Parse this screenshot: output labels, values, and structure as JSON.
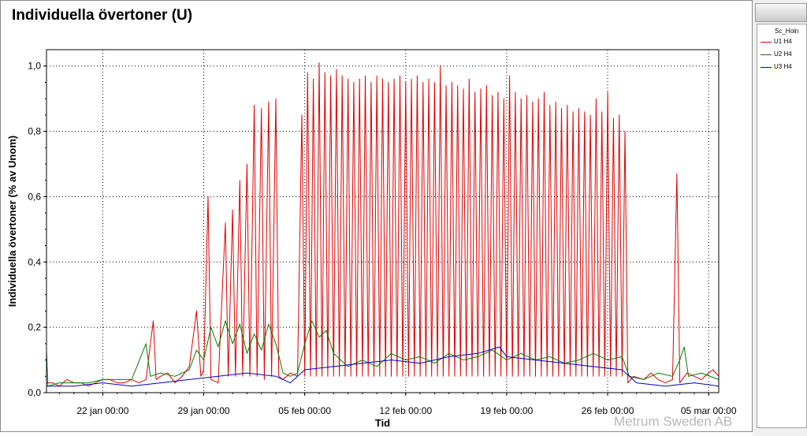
{
  "chart_data": {
    "type": "line",
    "title": "Individuella övertoner (U)",
    "xlabel": "Tid",
    "ylabel": "Individuella övertoner (% av Unom)",
    "ylim": [
      0,
      1.05
    ],
    "yticks": [
      "0,0",
      "0,2",
      "0,4",
      "0,6",
      "0,8",
      "1,0"
    ],
    "ytick_values": [
      0,
      0.2,
      0.4,
      0.6,
      0.8,
      1.0
    ],
    "xlim_days": [
      -3.9,
      42.7
    ],
    "xticks": [
      "22 jan 00:00",
      "29 jan 00:00",
      "05 feb 00:00",
      "12 feb 00:00",
      "19 feb 00:00",
      "26 feb 00:00",
      "05 mar 00:00"
    ],
    "xtick_days": [
      0,
      7,
      14,
      21,
      28,
      35,
      42
    ],
    "grid": true,
    "legend_title": "Sc_Holn",
    "legend_position": "right",
    "series": [
      {
        "name": "U1 H4",
        "color": "#e00000",
        "points": [
          [
            -3.9,
            0.03
          ],
          [
            -3.5,
            0.03
          ],
          [
            -3.0,
            0.02
          ],
          [
            -2.5,
            0.04
          ],
          [
            -2.0,
            0.03
          ],
          [
            -1.5,
            0.03
          ],
          [
            -1.0,
            0.02
          ],
          [
            -0.5,
            0.03
          ],
          [
            0.0,
            0.04
          ],
          [
            0.5,
            0.04
          ],
          [
            1.0,
            0.03
          ],
          [
            1.5,
            0.03
          ],
          [
            2.0,
            0.04
          ],
          [
            2.5,
            0.03
          ],
          [
            3.0,
            0.04
          ],
          [
            3.5,
            0.22
          ],
          [
            3.7,
            0.04
          ],
          [
            4.0,
            0.05
          ],
          [
            4.5,
            0.06
          ],
          [
            5.0,
            0.03
          ],
          [
            5.5,
            0.05
          ],
          [
            6.0,
            0.08
          ],
          [
            6.5,
            0.25
          ],
          [
            6.8,
            0.05
          ],
          [
            7.0,
            0.07
          ],
          [
            7.3,
            0.6
          ],
          [
            7.5,
            0.04
          ],
          [
            8.0,
            0.03
          ],
          [
            8.5,
            0.52
          ],
          [
            8.7,
            0.05
          ],
          [
            9.0,
            0.56
          ],
          [
            9.2,
            0.05
          ],
          [
            9.5,
            0.65
          ],
          [
            9.7,
            0.05
          ],
          [
            10.0,
            0.7
          ],
          [
            10.2,
            0.05
          ],
          [
            10.5,
            0.88
          ],
          [
            10.7,
            0.05
          ],
          [
            11.0,
            0.87
          ],
          [
            11.2,
            0.04
          ],
          [
            11.5,
            0.89
          ],
          [
            11.7,
            0.05
          ],
          [
            12.0,
            0.9
          ],
          [
            12.2,
            0.05
          ],
          [
            12.5,
            0.04
          ],
          [
            13.0,
            0.06
          ],
          [
            13.5,
            0.05
          ],
          [
            13.8,
            0.85
          ],
          [
            14.0,
            0.05
          ],
          [
            14.2,
            0.98
          ],
          [
            14.4,
            0.05
          ],
          [
            14.6,
            0.96
          ],
          [
            14.8,
            0.05
          ],
          [
            15.0,
            1.01
          ],
          [
            15.2,
            0.05
          ],
          [
            15.4,
            0.98
          ],
          [
            15.6,
            0.05
          ],
          [
            15.8,
            0.97
          ],
          [
            16.0,
            0.05
          ],
          [
            16.2,
            0.99
          ],
          [
            16.4,
            0.05
          ],
          [
            16.6,
            0.97
          ],
          [
            16.8,
            0.05
          ],
          [
            17.0,
            0.96
          ],
          [
            17.2,
            0.05
          ],
          [
            17.4,
            0.95
          ],
          [
            17.6,
            0.05
          ],
          [
            17.8,
            0.96
          ],
          [
            18.0,
            0.05
          ],
          [
            18.2,
            0.97
          ],
          [
            18.4,
            0.05
          ],
          [
            18.6,
            0.95
          ],
          [
            18.8,
            0.05
          ],
          [
            19.0,
            0.97
          ],
          [
            19.2,
            0.05
          ],
          [
            19.4,
            0.96
          ],
          [
            19.6,
            0.05
          ],
          [
            19.8,
            0.95
          ],
          [
            20.0,
            0.05
          ],
          [
            20.2,
            0.96
          ],
          [
            20.4,
            0.05
          ],
          [
            20.6,
            0.97
          ],
          [
            20.8,
            0.05
          ],
          [
            21.0,
            0.95
          ],
          [
            21.2,
            0.05
          ],
          [
            21.4,
            0.96
          ],
          [
            21.6,
            0.05
          ],
          [
            21.8,
            0.97
          ],
          [
            22.0,
            0.05
          ],
          [
            22.2,
            0.95
          ],
          [
            22.4,
            0.05
          ],
          [
            22.6,
            0.96
          ],
          [
            22.8,
            0.05
          ],
          [
            23.0,
            0.95
          ],
          [
            23.2,
            0.05
          ],
          [
            23.4,
            1.0
          ],
          [
            23.6,
            0.05
          ],
          [
            23.8,
            0.94
          ],
          [
            24.0,
            0.05
          ],
          [
            24.2,
            0.95
          ],
          [
            24.4,
            0.05
          ],
          [
            24.6,
            0.94
          ],
          [
            24.8,
            0.05
          ],
          [
            25.0,
            0.93
          ],
          [
            25.2,
            0.05
          ],
          [
            25.4,
            0.96
          ],
          [
            25.6,
            0.05
          ],
          [
            25.8,
            0.92
          ],
          [
            26.0,
            0.05
          ],
          [
            26.2,
            0.93
          ],
          [
            26.4,
            0.05
          ],
          [
            26.6,
            0.94
          ],
          [
            26.8,
            0.05
          ],
          [
            27.0,
            0.91
          ],
          [
            27.2,
            0.05
          ],
          [
            27.4,
            0.92
          ],
          [
            27.6,
            0.05
          ],
          [
            27.8,
            0.9
          ],
          [
            28.0,
            0.05
          ],
          [
            28.2,
            0.97
          ],
          [
            28.4,
            0.05
          ],
          [
            28.6,
            0.92
          ],
          [
            28.8,
            0.05
          ],
          [
            29.0,
            0.9
          ],
          [
            29.2,
            0.05
          ],
          [
            29.4,
            0.91
          ],
          [
            29.6,
            0.05
          ],
          [
            29.8,
            0.89
          ],
          [
            30.0,
            0.05
          ],
          [
            30.2,
            0.9
          ],
          [
            30.4,
            0.05
          ],
          [
            30.6,
            0.92
          ],
          [
            30.8,
            0.05
          ],
          [
            31.0,
            0.88
          ],
          [
            31.2,
            0.05
          ],
          [
            31.4,
            0.89
          ],
          [
            31.6,
            0.05
          ],
          [
            31.8,
            0.87
          ],
          [
            32.0,
            0.05
          ],
          [
            32.2,
            0.88
          ],
          [
            32.4,
            0.05
          ],
          [
            32.6,
            0.86
          ],
          [
            32.8,
            0.05
          ],
          [
            33.0,
            0.87
          ],
          [
            33.2,
            0.05
          ],
          [
            33.4,
            0.86
          ],
          [
            33.6,
            0.05
          ],
          [
            33.8,
            0.85
          ],
          [
            34.0,
            0.05
          ],
          [
            34.2,
            0.9
          ],
          [
            34.4,
            0.05
          ],
          [
            34.6,
            0.86
          ],
          [
            34.8,
            0.05
          ],
          [
            35.0,
            0.92
          ],
          [
            35.2,
            0.05
          ],
          [
            35.4,
            0.84
          ],
          [
            35.6,
            0.05
          ],
          [
            35.8,
            0.85
          ],
          [
            36.0,
            0.05
          ],
          [
            36.2,
            0.8
          ],
          [
            36.4,
            0.03
          ],
          [
            36.8,
            0.05
          ],
          [
            37.5,
            0.04
          ],
          [
            38.0,
            0.06
          ],
          [
            38.5,
            0.04
          ],
          [
            39.0,
            0.03
          ],
          [
            39.5,
            0.04
          ],
          [
            39.8,
            0.67
          ],
          [
            40.0,
            0.03
          ],
          [
            40.5,
            0.06
          ],
          [
            41.0,
            0.05
          ],
          [
            41.5,
            0.04
          ],
          [
            42.0,
            0.06
          ],
          [
            42.3,
            0.07
          ],
          [
            42.7,
            0.05
          ]
        ]
      },
      {
        "name": "U2 H4",
        "color": "#008000",
        "points": [
          [
            -3.9,
            0.13
          ],
          [
            -3.8,
            0.02
          ],
          [
            -3.0,
            0.03
          ],
          [
            -2.0,
            0.03
          ],
          [
            -1.0,
            0.03
          ],
          [
            0.0,
            0.04
          ],
          [
            1.0,
            0.04
          ],
          [
            2.0,
            0.04
          ],
          [
            3.0,
            0.15
          ],
          [
            3.3,
            0.05
          ],
          [
            4.0,
            0.06
          ],
          [
            5.0,
            0.05
          ],
          [
            6.0,
            0.07
          ],
          [
            6.5,
            0.13
          ],
          [
            7.0,
            0.1
          ],
          [
            7.5,
            0.2
          ],
          [
            8.0,
            0.14
          ],
          [
            8.5,
            0.22
          ],
          [
            9.0,
            0.15
          ],
          [
            9.5,
            0.21
          ],
          [
            10.0,
            0.12
          ],
          [
            10.5,
            0.18
          ],
          [
            11.0,
            0.13
          ],
          [
            11.5,
            0.21
          ],
          [
            12.0,
            0.15
          ],
          [
            12.5,
            0.06
          ],
          [
            13.0,
            0.05
          ],
          [
            13.5,
            0.06
          ],
          [
            14.0,
            0.15
          ],
          [
            14.5,
            0.22
          ],
          [
            15.0,
            0.17
          ],
          [
            15.5,
            0.19
          ],
          [
            16.0,
            0.12
          ],
          [
            16.5,
            0.1
          ],
          [
            17.0,
            0.08
          ],
          [
            18.0,
            0.1
          ],
          [
            19.0,
            0.08
          ],
          [
            20.0,
            0.12
          ],
          [
            21.0,
            0.1
          ],
          [
            22.0,
            0.11
          ],
          [
            23.0,
            0.09
          ],
          [
            24.0,
            0.12
          ],
          [
            25.0,
            0.1
          ],
          [
            26.0,
            0.11
          ],
          [
            27.0,
            0.13
          ],
          [
            28.0,
            0.1
          ],
          [
            29.0,
            0.12
          ],
          [
            30.0,
            0.1
          ],
          [
            31.0,
            0.11
          ],
          [
            32.0,
            0.09
          ],
          [
            33.0,
            0.1
          ],
          [
            34.0,
            0.12
          ],
          [
            35.0,
            0.1
          ],
          [
            36.0,
            0.11
          ],
          [
            36.5,
            0.05
          ],
          [
            37.5,
            0.04
          ],
          [
            38.5,
            0.06
          ],
          [
            39.5,
            0.05
          ],
          [
            40.0,
            0.1
          ],
          [
            40.3,
            0.14
          ],
          [
            40.6,
            0.05
          ],
          [
            41.5,
            0.06
          ],
          [
            42.7,
            0.04
          ]
        ]
      },
      {
        "name": "U3 H4",
        "color": "#0000cc",
        "points": [
          [
            -3.9,
            0.02
          ],
          [
            -2.0,
            0.02
          ],
          [
            0.0,
            0.03
          ],
          [
            2.0,
            0.02
          ],
          [
            4.0,
            0.03
          ],
          [
            6.0,
            0.04
          ],
          [
            8.0,
            0.05
          ],
          [
            10.0,
            0.06
          ],
          [
            12.0,
            0.05
          ],
          [
            13.0,
            0.03
          ],
          [
            14.0,
            0.07
          ],
          [
            16.0,
            0.08
          ],
          [
            18.0,
            0.09
          ],
          [
            20.0,
            0.1
          ],
          [
            22.0,
            0.09
          ],
          [
            24.0,
            0.11
          ],
          [
            26.0,
            0.12
          ],
          [
            27.5,
            0.14
          ],
          [
            28.0,
            0.11
          ],
          [
            30.0,
            0.1
          ],
          [
            32.0,
            0.09
          ],
          [
            34.0,
            0.08
          ],
          [
            36.0,
            0.07
          ],
          [
            37.0,
            0.03
          ],
          [
            39.0,
            0.02
          ],
          [
            41.0,
            0.03
          ],
          [
            42.7,
            0.02
          ]
        ]
      }
    ]
  },
  "watermark": "Metrum Sweden AB"
}
